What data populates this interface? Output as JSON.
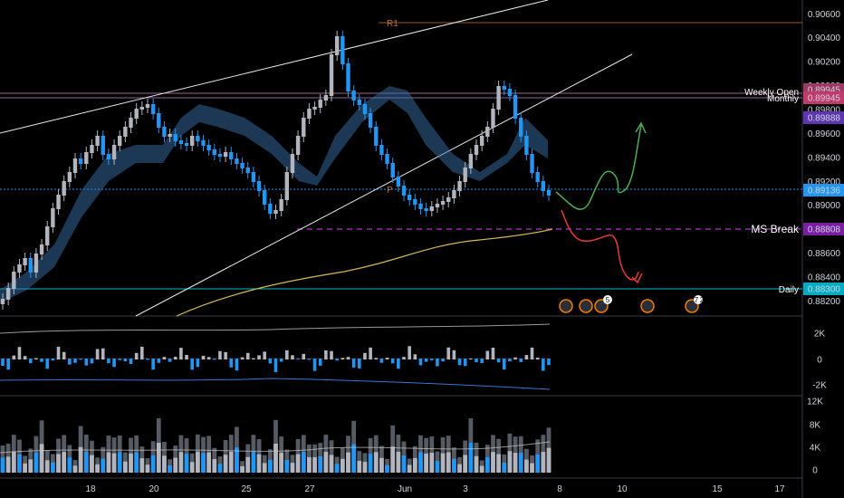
{
  "chart_data": {
    "type": "candlestick",
    "symbol_pair_hint": "",
    "price_axis": {
      "ticks": [
        "0.90600",
        "0.90400",
        "0.90200",
        "0.90000",
        "0.89800",
        "0.89600",
        "0.89400",
        "0.89200",
        "0.89000",
        "0.88800",
        "0.88600",
        "0.88400",
        "0.88200"
      ],
      "range": [
        0.8812,
        0.9064
      ]
    },
    "osc_axis": {
      "ticks": [
        "2K",
        "0",
        "-2K"
      ]
    },
    "volume_axis": {
      "ticks": [
        "12K",
        "8K",
        "4K",
        "0"
      ]
    },
    "time_axis": {
      "ticks": [
        "18",
        "20",
        "25",
        "27",
        "Jun",
        "3",
        "8",
        "10",
        "15",
        "17"
      ]
    },
    "price_labels": [
      {
        "text": "0.89945",
        "price": 0.89945,
        "color": "#9c3b62",
        "line_color": "#c77cae"
      },
      {
        "text": "0.89945",
        "price": 0.89945,
        "color": "#c03a6c",
        "line_color": "#c77cae"
      },
      {
        "text": "0.89888",
        "price": 0.89888,
        "color": "#5e35b1",
        "line_color": "#7e57c2"
      },
      {
        "text": "0.89136",
        "price": 0.89136,
        "color": "#2196f3",
        "line_color": "#2196f3"
      },
      {
        "text": "0.88808",
        "price": 0.88808,
        "color": "#7b1fa2",
        "line_color": "#9c27b0"
      },
      {
        "text": "0.88300",
        "price": 0.883,
        "color": "#00acc1",
        "line_color": "#00bcd4"
      }
    ],
    "level_labels": [
      {
        "text": "Weekly Open",
        "price": 0.89945
      },
      {
        "text": "Monthly",
        "price": 0.89925
      },
      {
        "text": "MS Break",
        "price": 0.88808
      },
      {
        "text": "Daily",
        "price": 0.883
      },
      {
        "text": "R1",
        "price": 0.9053
      },
      {
        "text": "P",
        "price": 0.8913
      }
    ],
    "event_badges": [
      {
        "count": "",
        "x_frac": 0.0
      },
      {
        "count": "",
        "x_frac": 0.0
      },
      {
        "count": "5",
        "x_frac": 0.0
      },
      {
        "count": "",
        "x_frac": 0.0
      },
      {
        "count": "7",
        "x_frac": 0.0
      },
      {
        "count": "2",
        "x_frac": 0.0
      }
    ],
    "annotations": [
      {
        "kind": "projection-up",
        "color": "#4caf50"
      },
      {
        "kind": "projection-down",
        "color": "#e53935"
      }
    ]
  }
}
